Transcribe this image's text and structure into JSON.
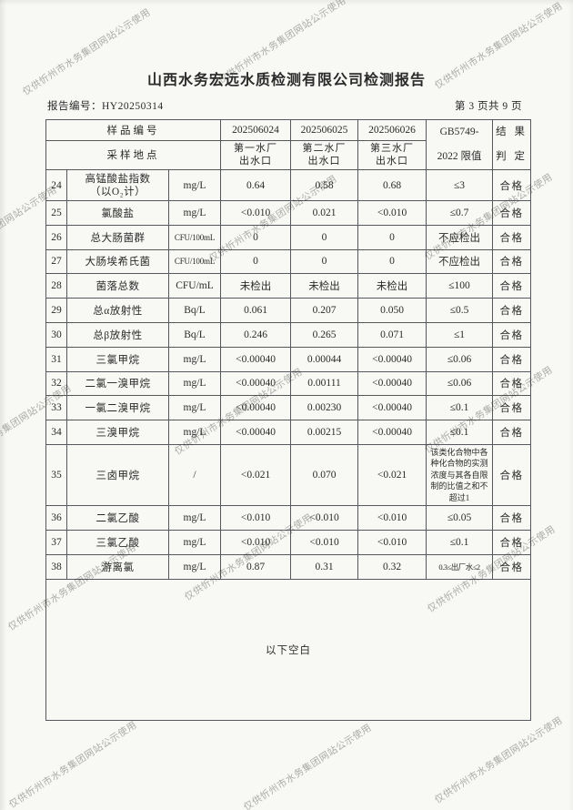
{
  "document": {
    "title": "山西水务宏远水质检测有限公司检测报告",
    "report_number": "报告编号：HY20250314",
    "page_indicator": "第 3 页共 9 页"
  },
  "watermark": {
    "text": "仅供忻州市水务集团网站公示使用"
  },
  "table": {
    "header": {
      "sample_id_label": "样品编号",
      "sampling_site_label": "采样地点",
      "sample_ids": [
        "202506024",
        "202506025",
        "202506026"
      ],
      "sites": [
        [
          "第一水厂",
          "出水口"
        ],
        [
          "第二水厂",
          "出水口"
        ],
        [
          "第三水厂",
          "出水口"
        ]
      ],
      "limit_lines": [
        "GB5749-",
        "2022 限值"
      ],
      "result_lines": [
        "结 果",
        "判 定"
      ]
    },
    "rows": [
      {
        "no": "24",
        "name": "高锰酸盐指数",
        "name2": "（以O₂计）",
        "unit": "mg/L",
        "values": [
          "0.64",
          "0.58",
          "0.68"
        ],
        "limit": "≤3",
        "result": "合格"
      },
      {
        "no": "25",
        "name": "氯酸盐",
        "unit": "mg/L",
        "values": [
          "<0.010",
          "0.021",
          "<0.010"
        ],
        "limit": "≤0.7",
        "result": "合格"
      },
      {
        "no": "26",
        "name": "总大肠菌群",
        "unit": "CFU/100mL",
        "values": [
          "0",
          "0",
          "0"
        ],
        "limit": "不应检出",
        "result": "合格"
      },
      {
        "no": "27",
        "name": "大肠埃希氏菌",
        "unit": "CFU/100mL",
        "values": [
          "0",
          "0",
          "0"
        ],
        "limit": "不应检出",
        "result": "合格"
      },
      {
        "no": "28",
        "name": "菌落总数",
        "unit": "CFU/mL",
        "values": [
          "未检出",
          "未检出",
          "未检出"
        ],
        "limit": "≤100",
        "result": "合格"
      },
      {
        "no": "29",
        "name": "总α放射性",
        "unit": "Bq/L",
        "values": [
          "0.061",
          "0.207",
          "0.050"
        ],
        "limit": "≤0.5",
        "result": "合格"
      },
      {
        "no": "30",
        "name": "总β放射性",
        "unit": "Bq/L",
        "values": [
          "0.246",
          "0.265",
          "0.071"
        ],
        "limit": "≤1",
        "result": "合格"
      },
      {
        "no": "31",
        "name": "三氯甲烷",
        "unit": "mg/L",
        "values": [
          "<0.00040",
          "0.00044",
          "<0.00040"
        ],
        "limit": "≤0.06",
        "result": "合格"
      },
      {
        "no": "32",
        "name": "二氯一溴甲烷",
        "unit": "mg/L",
        "values": [
          "<0.00040",
          "0.00111",
          "<0.00040"
        ],
        "limit": "≤0.06",
        "result": "合格"
      },
      {
        "no": "33",
        "name": "一氯二溴甲烷",
        "unit": "mg/L",
        "values": [
          "<0.00040",
          "0.00230",
          "<0.00040"
        ],
        "limit": "≤0.1",
        "result": "合格"
      },
      {
        "no": "34",
        "name": "三溴甲烷",
        "unit": "mg/L",
        "values": [
          "<0.00040",
          "0.00215",
          "<0.00040"
        ],
        "limit": "≤0.1",
        "result": "合格"
      },
      {
        "no": "35",
        "name": "三卤甲烷",
        "unit": "/",
        "values": [
          "<0.021",
          "0.070",
          "<0.021"
        ],
        "limit": "该类化合物中各种化合物的实测浓度与其各自限制的比值之和不超过1",
        "result": "合格"
      },
      {
        "no": "36",
        "name": "二氯乙酸",
        "unit": "mg/L",
        "values": [
          "<0.010",
          "<0.010",
          "<0.010"
        ],
        "limit": "≤0.05",
        "result": "合格"
      },
      {
        "no": "37",
        "name": "三氯乙酸",
        "unit": "mg/L",
        "values": [
          "<0.010",
          "<0.010",
          "<0.010"
        ],
        "limit": "≤0.1",
        "result": "合格"
      },
      {
        "no": "38",
        "name": "游离氯",
        "unit": "mg/L",
        "values": [
          "0.87",
          "0.31",
          "0.32"
        ],
        "limit": "0.3≤出厂水≤2",
        "result": "合格"
      }
    ],
    "footer_note": "以下空白"
  },
  "colors": {
    "page_bg": "#f8f8f5",
    "text": "#2a2a2a",
    "border": "#55585c",
    "watermark": "#b0b0ae"
  }
}
